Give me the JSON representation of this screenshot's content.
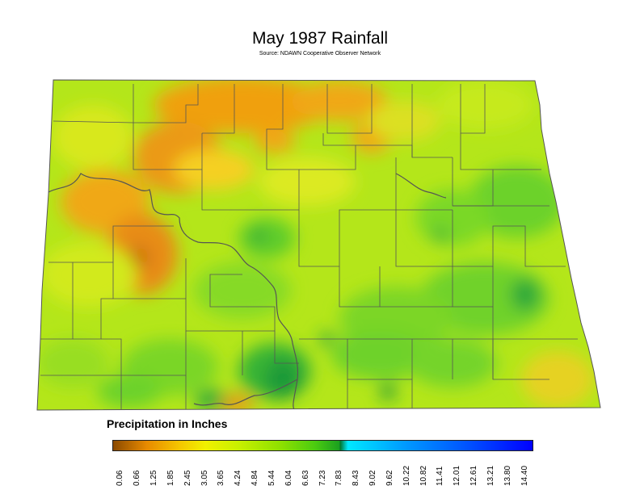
{
  "title": "May 1987 Rainfall",
  "subtitle": "Source: NDAWN Cooperative Observer Network",
  "legend": {
    "title": "Precipitation in Inches",
    "ticks": [
      "0.06",
      "0.66",
      "1.25",
      "1.85",
      "2.45",
      "3.05",
      "3.65",
      "4.24",
      "4.84",
      "5.44",
      "6.04",
      "6.63",
      "7.23",
      "7.83",
      "8.43",
      "9.02",
      "9.62",
      "10.22",
      "10.82",
      "11.41",
      "12.01",
      "12.61",
      "13.21",
      "13.80",
      "14.40"
    ],
    "color_stops": [
      "#8b4a00",
      "#e88a00",
      "#f5c800",
      "#f0f000",
      "#c8f000",
      "#8ee000",
      "#4ccc10",
      "#1aa020",
      "#006d1e",
      "#00e8ff",
      "#0098ff",
      "#0050ff",
      "#0000ff"
    ]
  },
  "colors": {
    "low": "#e8890d",
    "mid_low": "#d9e200",
    "mid": "#8ed81e",
    "high": "#1f9f3a",
    "county_lines": "#444444"
  }
}
